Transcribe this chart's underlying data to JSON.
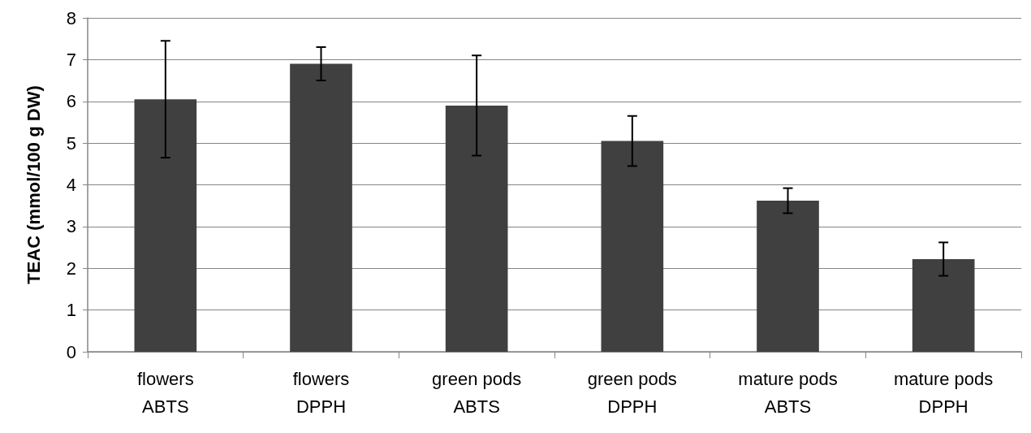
{
  "chart_data": {
    "type": "bar",
    "ylabel": "TEAC (mmol/100 g DW)",
    "categories": [
      "flowers\nABTS",
      "flowers\nDPPH",
      "green pods\nABTS",
      "green pods\nDPPH",
      "mature pods\nABTS",
      "mature pods\nDPPH"
    ],
    "values": [
      6.05,
      6.9,
      5.9,
      5.05,
      3.62,
      2.22
    ],
    "errors": [
      1.4,
      0.4,
      1.2,
      0.6,
      0.3,
      0.4
    ],
    "color": "#404040",
    "ylim": [
      0,
      8
    ],
    "yticks": [
      0,
      1,
      2,
      3,
      4,
      5,
      6,
      7,
      8
    ],
    "grid": "y"
  }
}
